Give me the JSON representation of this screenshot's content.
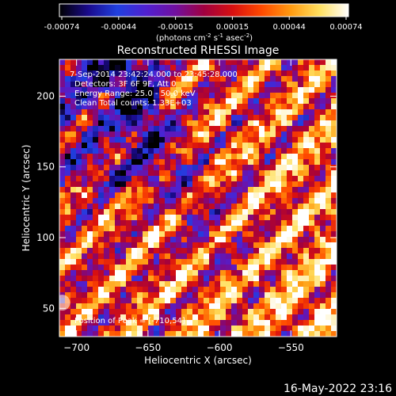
{
  "colorbar": {
    "stops": [
      "#000000",
      "#1a0a8c",
      "#2040e0",
      "#5020d0",
      "#7010a0",
      "#a00040",
      "#d81010",
      "#ff4a00",
      "#ff9a10",
      "#ffe060",
      "#ffffff"
    ],
    "tick_labels": [
      "-0.00074",
      "-0.00044",
      "-0.00015",
      "0.00015",
      "0.00044",
      "0.00074"
    ],
    "unit_label_parts": [
      "(photons cm",
      "-2",
      " s",
      "-1",
      " asec",
      "-2",
      ")"
    ]
  },
  "chart_data": {
    "type": "heatmap",
    "title": "Reconstructed RHESSI Image",
    "xlabel": "Heliocentric X (arcsec)",
    "ylabel": "Heliocentric Y (arcsec)",
    "xlim": [
      -712,
      -518
    ],
    "ylim": [
      30,
      226
    ],
    "x_ticks": [
      -700,
      -650,
      -600,
      -550
    ],
    "y_ticks": [
      50,
      100,
      150,
      200
    ],
    "x_tick_labels": [
      "−700",
      "−650",
      "−600",
      "−550"
    ],
    "y_tick_labels": [
      "50",
      "100",
      "150",
      "200"
    ],
    "value_range": [
      -0.00074,
      0.00074
    ],
    "annotations": [
      "7-Sep-2014 23:42:24.000 to 23:45:28.000",
      "Detectors: 3F 6F 9F, Att 0",
      "Energy Range: 25.0 - 50.0 keV",
      "Clean     Total counts: 1.33E+03"
    ],
    "peak_label": "Position of Peak = [-710,54]",
    "peak_position": [
      -710,
      54
    ]
  },
  "footer": {
    "date_stamp": "16-May-2022 23:16"
  }
}
